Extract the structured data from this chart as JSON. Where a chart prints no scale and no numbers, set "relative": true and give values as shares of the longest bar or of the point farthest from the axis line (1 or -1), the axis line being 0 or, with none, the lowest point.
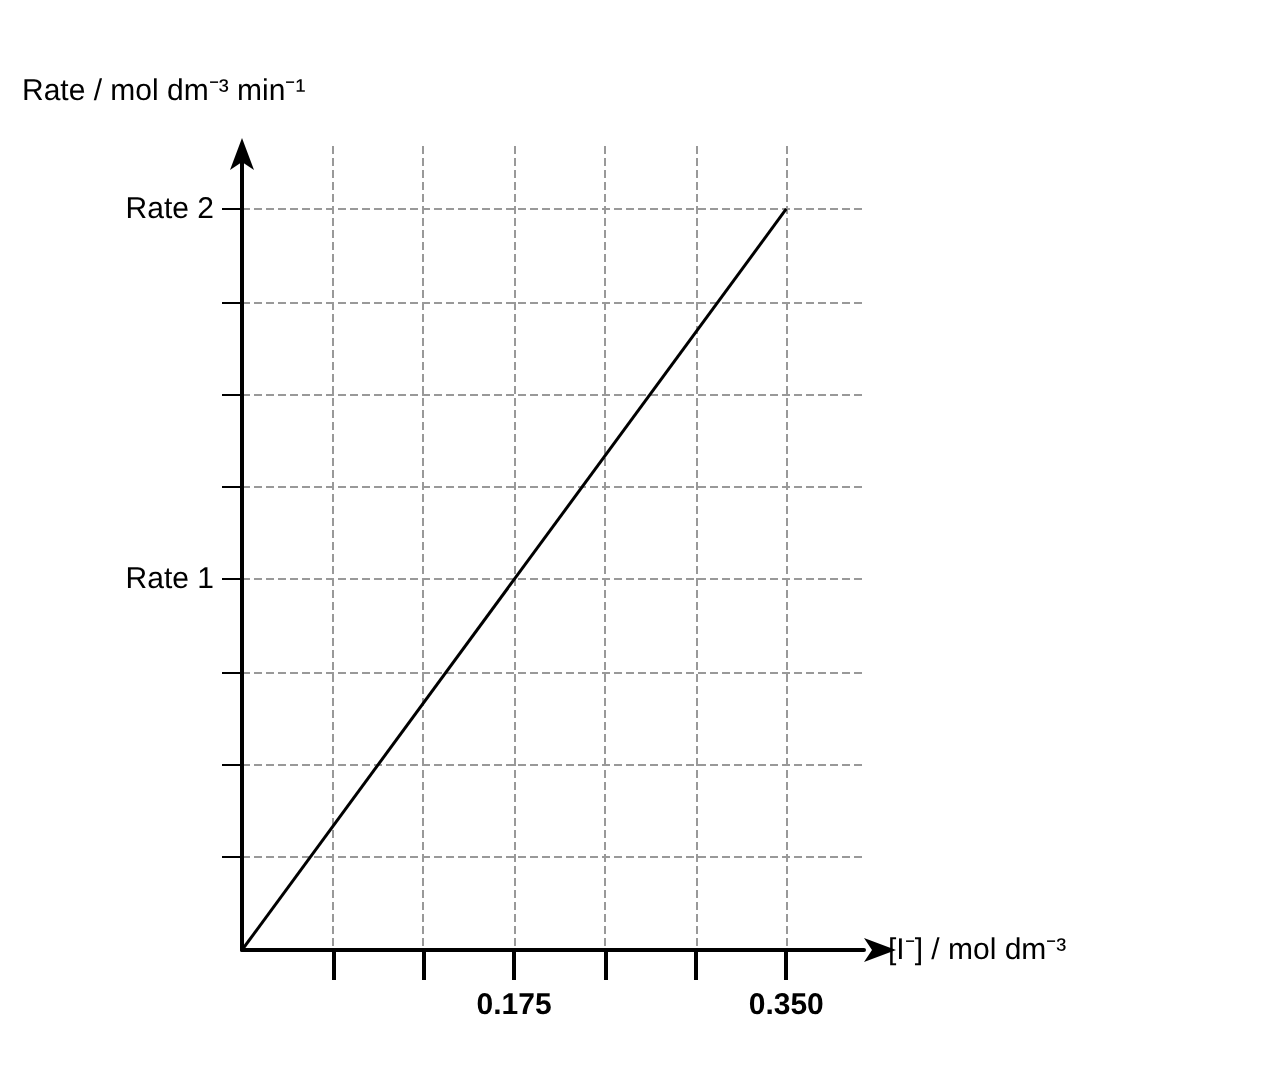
{
  "chart_data": {
    "type": "line",
    "xlabel": "[I⁻] / mol dm⁻³",
    "ylabel": "Rate / mol dm⁻³ min⁻¹",
    "x": [
      0,
      0.35
    ],
    "series": [
      {
        "color": "#000000",
        "values": [
          0,
          1
        ]
      }
    ],
    "relative": true,
    "xlim": [
      0,
      0.4
    ],
    "xticks": [
      {
        "value": 0.0583,
        "label": null
      },
      {
        "value": 0.1167,
        "label": null
      },
      {
        "value": 0.175,
        "label": "0.175"
      },
      {
        "value": 0.2333,
        "label": null
      },
      {
        "value": 0.2917,
        "label": null
      },
      {
        "value": 0.35,
        "label": "0.350"
      }
    ],
    "annotations": [
      "Rate 1",
      "Rate 2"
    ],
    "grid": true,
    "marker": "none",
    "line_style": "solid"
  }
}
